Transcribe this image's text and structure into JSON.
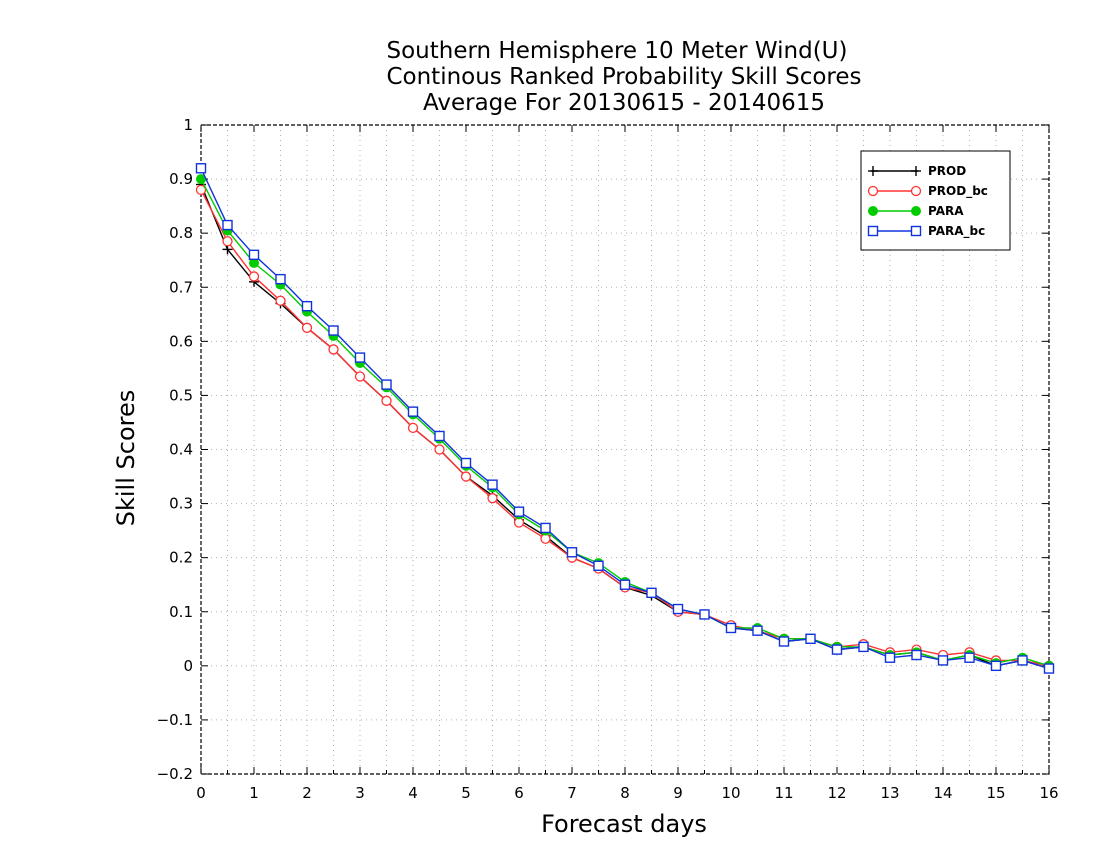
{
  "chart_data": {
    "type": "line",
    "title_lines": [
      "Southern Hemisphere 10 Meter Wind(U)",
      "Continous Ranked Probability Skill Scores",
      "Average For 20130615 - 20140615"
    ],
    "xlabel": "Forecast days",
    "ylabel": "Skill Scores",
    "xlim": [
      0,
      16
    ],
    "ylim": [
      -0.2,
      1
    ],
    "xticks": [
      "0",
      "1",
      "2",
      "3",
      "4",
      "5",
      "6",
      "7",
      "8",
      "9",
      "10",
      "11",
      "12",
      "13",
      "14",
      "15",
      "16"
    ],
    "yticks": [
      "−0.2",
      "−0.1",
      "0",
      "0.1",
      "0.2",
      "0.3",
      "0.4",
      "0.5",
      "0.6",
      "0.7",
      "0.8",
      "0.9",
      "1"
    ],
    "grid": true,
    "legend_position": "top-right",
    "x": [
      0,
      0.5,
      1,
      1.5,
      2,
      2.5,
      3,
      3.5,
      4,
      4.5,
      5,
      5.5,
      6,
      6.5,
      7,
      7.5,
      8,
      8.5,
      9,
      9.5,
      10,
      10.5,
      11,
      11.5,
      12,
      12.5,
      13,
      13.5,
      14,
      14.5,
      15,
      15.5,
      16
    ],
    "series": [
      {
        "name": "PROD",
        "color": "#000000",
        "marker": "plus",
        "values": [
          0.89,
          0.77,
          0.71,
          0.67,
          0.625,
          0.585,
          0.535,
          0.49,
          0.44,
          0.4,
          0.35,
          0.315,
          0.27,
          0.24,
          0.2,
          0.18,
          0.145,
          0.13,
          0.1,
          0.095,
          0.07,
          0.065,
          0.045,
          0.05,
          0.03,
          0.035,
          0.02,
          0.025,
          0.01,
          0.02,
          0.0,
          0.01,
          -0.005
        ]
      },
      {
        "name": "PROD_bc",
        "color": "#ff3333",
        "marker": "circle",
        "values": [
          0.88,
          0.785,
          0.72,
          0.675,
          0.625,
          0.585,
          0.535,
          0.49,
          0.44,
          0.4,
          0.35,
          0.31,
          0.265,
          0.235,
          0.2,
          0.18,
          0.145,
          0.135,
          0.1,
          0.095,
          0.075,
          0.065,
          0.05,
          0.05,
          0.035,
          0.04,
          0.025,
          0.03,
          0.02,
          0.025,
          0.01,
          0.01,
          0.0
        ]
      },
      {
        "name": "PARA",
        "color": "#00cc00",
        "marker": "filled-circle",
        "values": [
          0.9,
          0.805,
          0.745,
          0.705,
          0.655,
          0.61,
          0.56,
          0.515,
          0.465,
          0.42,
          0.37,
          0.33,
          0.28,
          0.25,
          0.21,
          0.19,
          0.155,
          0.135,
          0.105,
          0.095,
          0.07,
          0.07,
          0.05,
          0.05,
          0.035,
          0.035,
          0.02,
          0.025,
          0.01,
          0.02,
          0.005,
          0.015,
          0.0
        ]
      },
      {
        "name": "PARA_bc",
        "color": "#1133dd",
        "marker": "square",
        "values": [
          0.92,
          0.815,
          0.76,
          0.715,
          0.665,
          0.62,
          0.57,
          0.52,
          0.47,
          0.425,
          0.375,
          0.335,
          0.285,
          0.255,
          0.21,
          0.185,
          0.15,
          0.135,
          0.105,
          0.095,
          0.07,
          0.065,
          0.045,
          0.05,
          0.03,
          0.035,
          0.015,
          0.02,
          0.01,
          0.015,
          0.0,
          0.01,
          -0.005
        ]
      }
    ]
  }
}
